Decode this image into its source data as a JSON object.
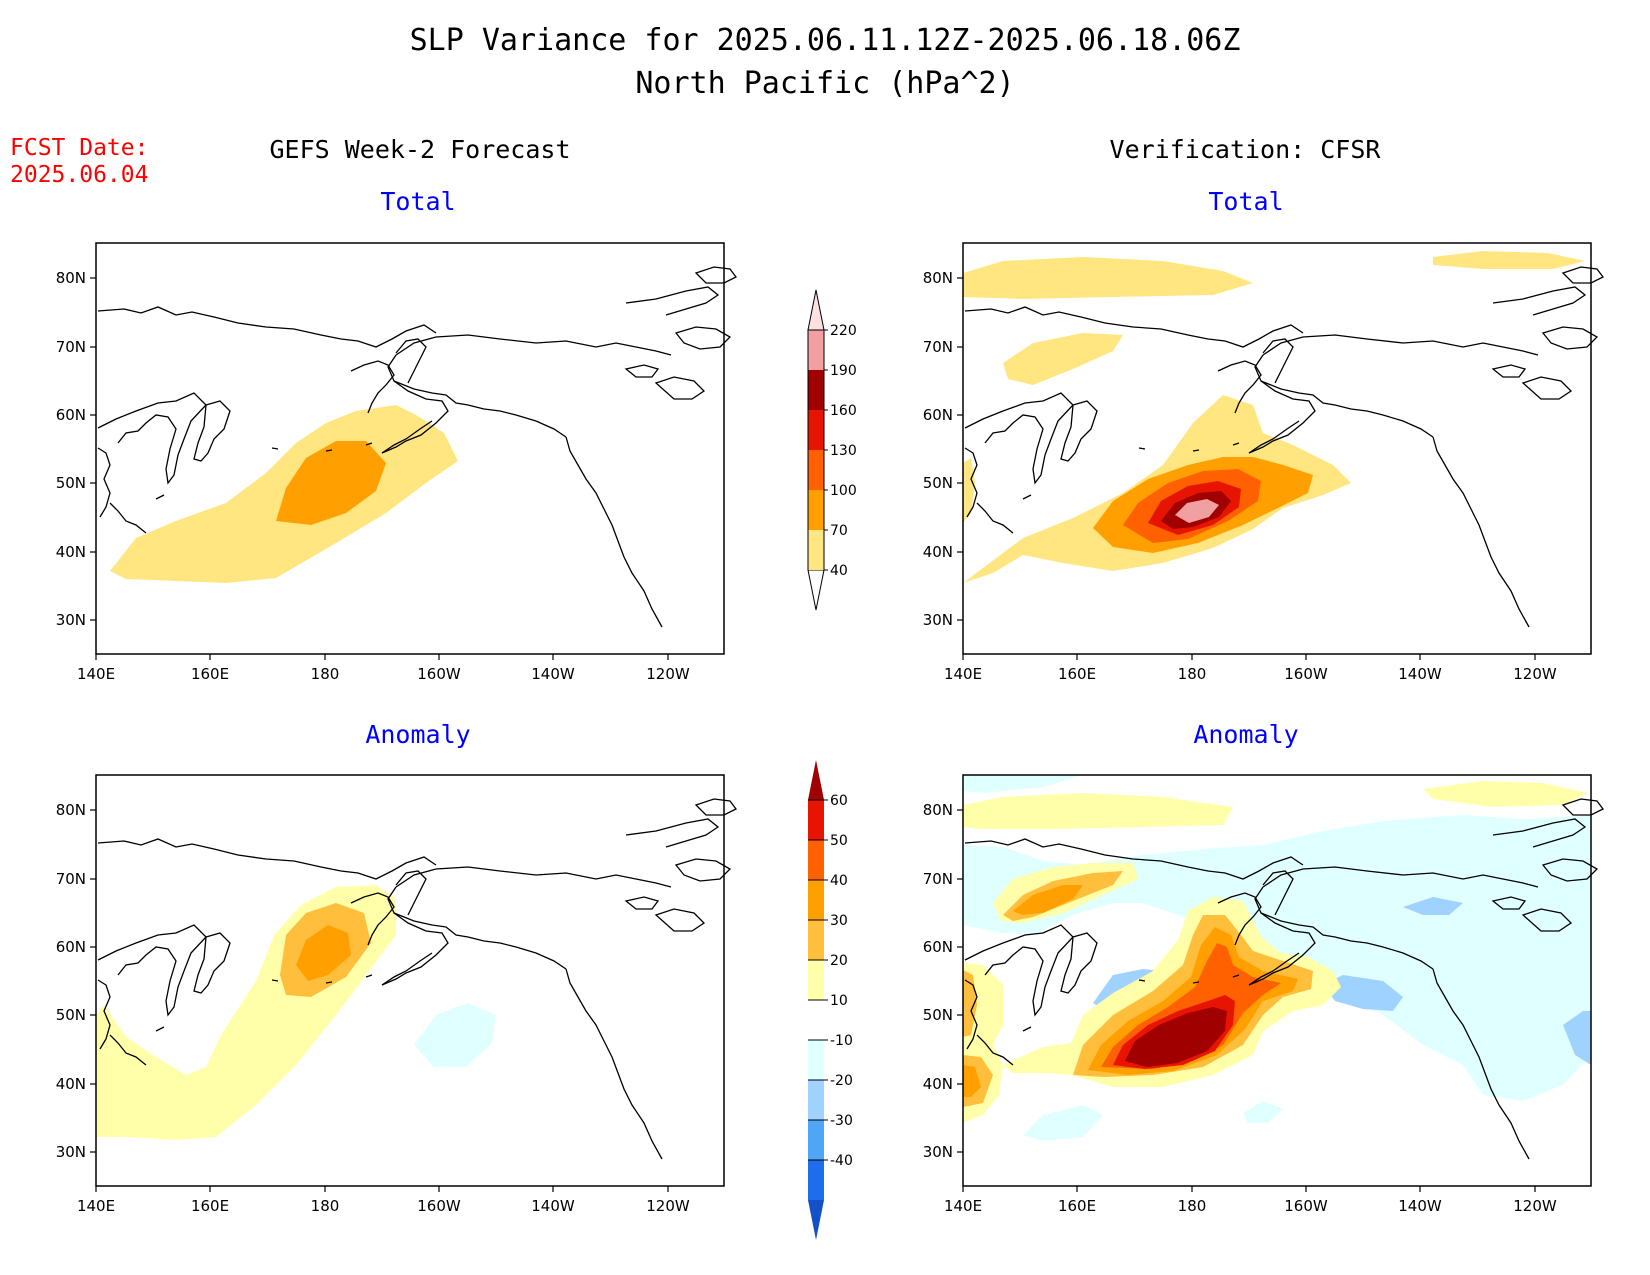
{
  "title": {
    "line1": "SLP Variance for 2025.06.11.12Z-2025.06.18.06Z",
    "line2": "North Pacific (hPa^2)"
  },
  "fcst_date": {
    "label": "FCST Date:",
    "value": "2025.06.04"
  },
  "columns": {
    "left": "GEFS Week-2 Forecast",
    "right": "Verification: CFSR"
  },
  "panel_titles": {
    "top": "Total",
    "bottom": "Anomaly"
  },
  "axes": {
    "x_ticks": [
      "140E",
      "160E",
      "180",
      "160W",
      "140W",
      "120W"
    ],
    "y_ticks": [
      "80N",
      "70N",
      "60N",
      "50N",
      "40N",
      "30N"
    ]
  },
  "colorbars": {
    "total": {
      "labels": [
        "40",
        "70",
        "100",
        "130",
        "160",
        "190",
        "220"
      ],
      "colors": [
        "#ffe680",
        "#ffa000",
        "#ff6000",
        "#e61400",
        "#a00000",
        "#f0a0a0",
        "#ffe0e0"
      ]
    },
    "anomaly": {
      "labels": [
        "60",
        "50",
        "40",
        "30",
        "20",
        "10",
        "-10",
        "-20",
        "-30",
        "-40"
      ],
      "colors": [
        "#a00000",
        "#e61400",
        "#ff6000",
        "#ffa000",
        "#ffbe3c",
        "#ffffaa",
        "#ffffff",
        "#e0ffff",
        "#a0d2ff",
        "#50a5f5",
        "#1e6eeb",
        "#1450c8"
      ]
    }
  },
  "colors": {
    "fcst_date": "#ff0000",
    "panel_title": "#0000ff"
  }
}
